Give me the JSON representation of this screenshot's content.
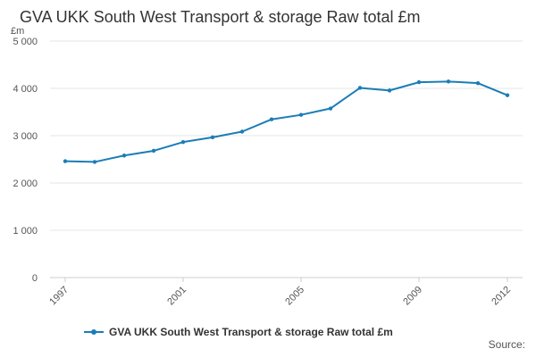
{
  "chart_data": {
    "type": "line",
    "title": "GVA UKK South West Transport & storage Raw total £m",
    "ylabel": "£m",
    "xlabel": "",
    "x": [
      1997,
      1998,
      1999,
      2000,
      2001,
      2002,
      2003,
      2004,
      2005,
      2006,
      2007,
      2008,
      2009,
      2010,
      2011,
      2012
    ],
    "x_tick_labels": [
      "1997",
      "2001",
      "2005",
      "2009",
      "2012"
    ],
    "x_tick_values": [
      1997,
      2001,
      2005,
      2009,
      2012
    ],
    "ylim": [
      0,
      5000
    ],
    "y_tick_values": [
      0,
      1000,
      2000,
      3000,
      4000,
      5000
    ],
    "y_tick_labels": [
      "0",
      "1 000",
      "2 000",
      "3 000",
      "4 000",
      "5 000"
    ],
    "grid": true,
    "legend_position": "bottom",
    "series": [
      {
        "name": "GVA UKK South West Transport & storage Raw total £m",
        "color": "#1a7db6",
        "values": [
          2460,
          2445,
          2580,
          2680,
          2865,
          2965,
          3085,
          3345,
          3440,
          3575,
          4010,
          3955,
          4130,
          4145,
          4110,
          3855
        ]
      }
    ]
  },
  "footer": {
    "source_label": "Source:"
  }
}
